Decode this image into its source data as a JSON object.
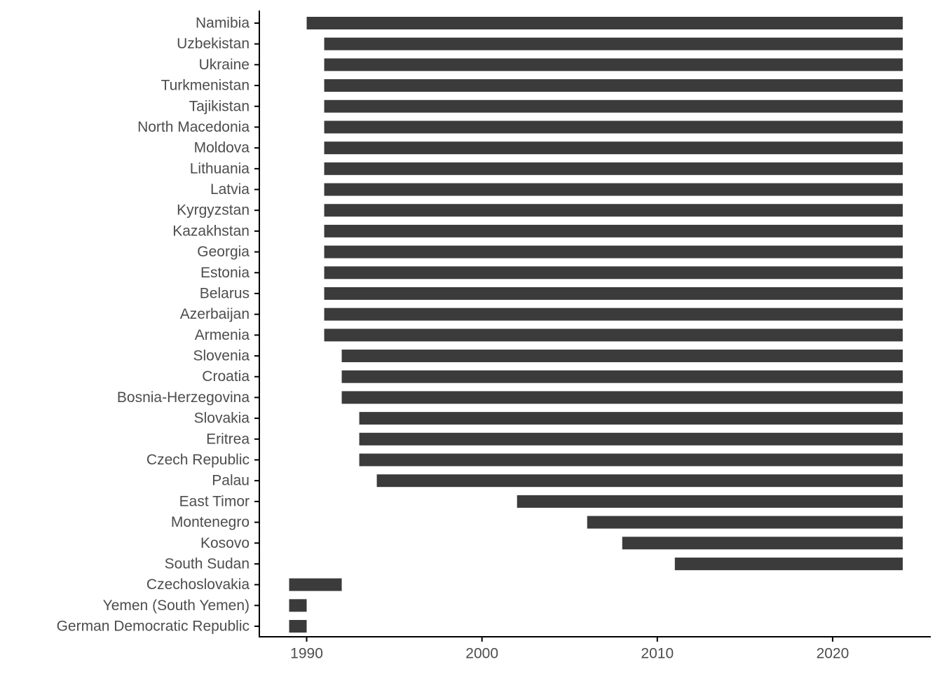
{
  "chart_data": {
    "type": "bar",
    "orientation": "horizontal",
    "bar_color": "#3b3b3b",
    "axis_color": "#000000",
    "tick_label_color": "#4d4d4d",
    "grid": false,
    "xlim": [
      1987.3,
      2025.6
    ],
    "xticks": [
      1990,
      2000,
      2010,
      2020
    ],
    "tick_labels": [
      "1990",
      "2000",
      "2010",
      "2020"
    ],
    "xlabel": "",
    "ylabel": "",
    "bars": [
      {
        "label": "Namibia",
        "start": 1990,
        "end": 2024
      },
      {
        "label": "Uzbekistan",
        "start": 1991,
        "end": 2024
      },
      {
        "label": "Ukraine",
        "start": 1991,
        "end": 2024
      },
      {
        "label": "Turkmenistan",
        "start": 1991,
        "end": 2024
      },
      {
        "label": "Tajikistan",
        "start": 1991,
        "end": 2024
      },
      {
        "label": "North Macedonia",
        "start": 1991,
        "end": 2024
      },
      {
        "label": "Moldova",
        "start": 1991,
        "end": 2024
      },
      {
        "label": "Lithuania",
        "start": 1991,
        "end": 2024
      },
      {
        "label": "Latvia",
        "start": 1991,
        "end": 2024
      },
      {
        "label": "Kyrgyzstan",
        "start": 1991,
        "end": 2024
      },
      {
        "label": "Kazakhstan",
        "start": 1991,
        "end": 2024
      },
      {
        "label": "Georgia",
        "start": 1991,
        "end": 2024
      },
      {
        "label": "Estonia",
        "start": 1991,
        "end": 2024
      },
      {
        "label": "Belarus",
        "start": 1991,
        "end": 2024
      },
      {
        "label": "Azerbaijan",
        "start": 1991,
        "end": 2024
      },
      {
        "label": "Armenia",
        "start": 1991,
        "end": 2024
      },
      {
        "label": "Slovenia",
        "start": 1992,
        "end": 2024
      },
      {
        "label": "Croatia",
        "start": 1992,
        "end": 2024
      },
      {
        "label": "Bosnia-Herzegovina",
        "start": 1992,
        "end": 2024
      },
      {
        "label": "Slovakia",
        "start": 1993,
        "end": 2024
      },
      {
        "label": "Eritrea",
        "start": 1993,
        "end": 2024
      },
      {
        "label": "Czech Republic",
        "start": 1993,
        "end": 2024
      },
      {
        "label": "Palau",
        "start": 1994,
        "end": 2024
      },
      {
        "label": "East Timor",
        "start": 2002,
        "end": 2024
      },
      {
        "label": "Montenegro",
        "start": 2006,
        "end": 2024
      },
      {
        "label": "Kosovo",
        "start": 2008,
        "end": 2024
      },
      {
        "label": "South Sudan",
        "start": 2011,
        "end": 2024
      },
      {
        "label": "Czechoslovakia",
        "start": 1989,
        "end": 1992
      },
      {
        "label": "Yemen (South Yemen)",
        "start": 1989,
        "end": 1990
      },
      {
        "label": "German Democratic Republic",
        "start": 1989,
        "end": 1990
      }
    ]
  }
}
